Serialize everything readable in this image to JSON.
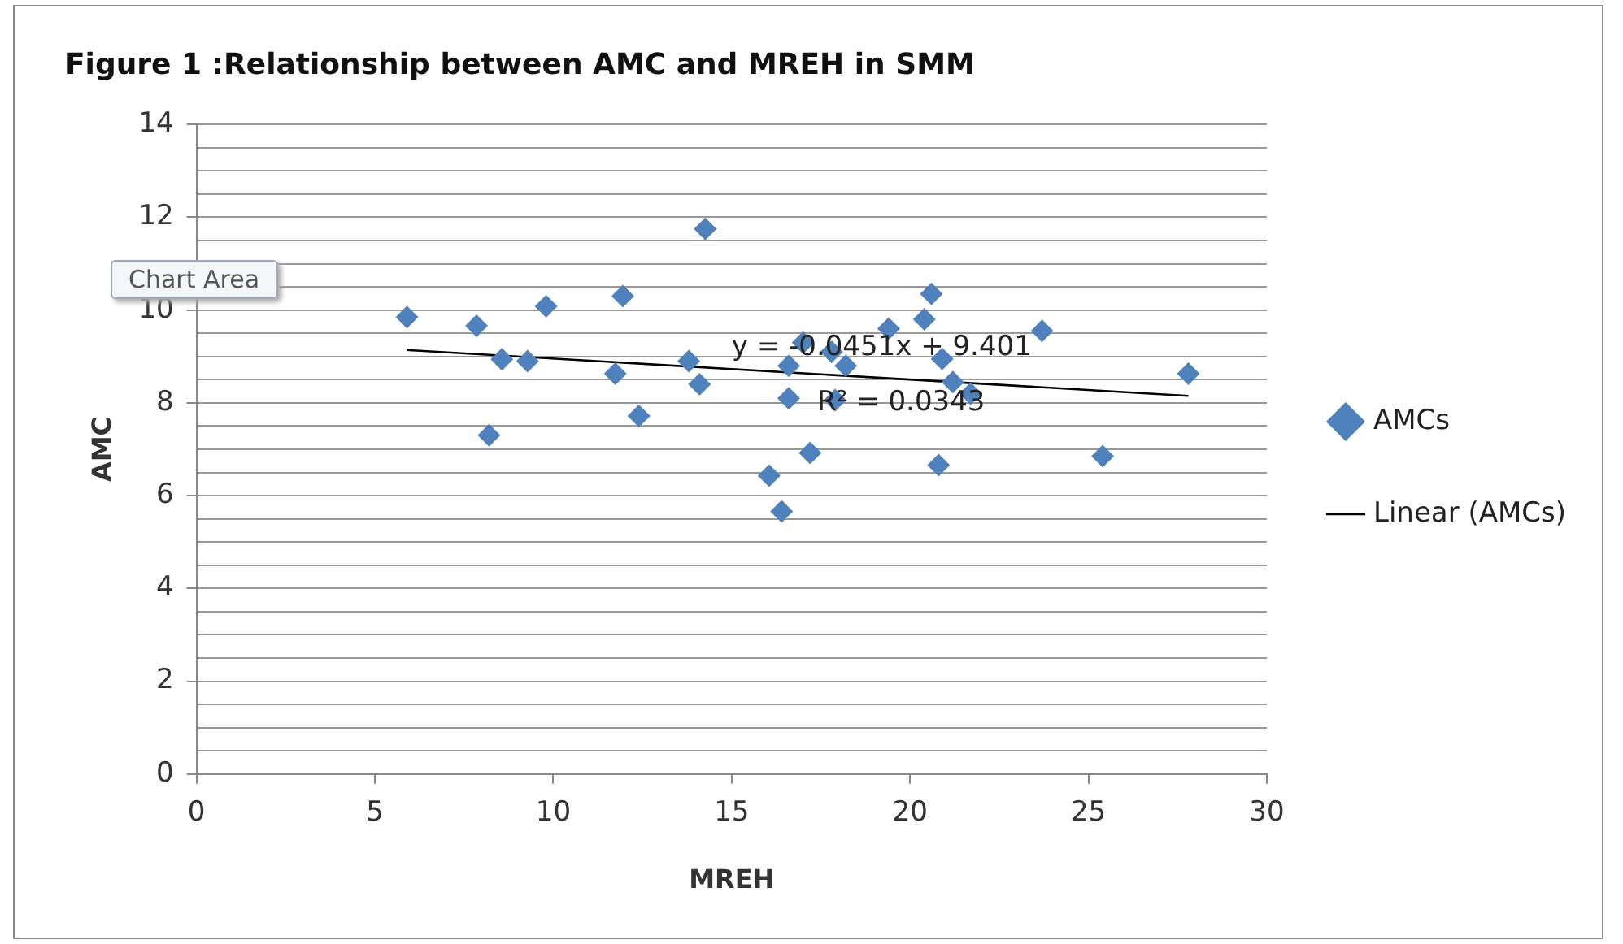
{
  "chart_data": {
    "type": "scatter",
    "title": "Figure 1 :Relationship between AMC and MREH in SMM",
    "xlabel": "MREH",
    "ylabel": "AMC",
    "series": [
      {
        "name": "AMCs",
        "color": "#4f81bd",
        "marker": "diamond",
        "x": [
          5.9,
          7.85,
          8.2,
          8.56,
          9.28,
          9.8,
          11.74,
          11.95,
          12.4,
          14.26,
          13.8,
          14.1,
          20.6,
          20.4,
          19.4,
          23.7,
          17.0,
          17.8,
          16.6,
          18.2,
          20.9,
          27.8,
          16.6,
          17.9,
          21.2,
          21.7,
          17.2,
          16.05,
          16.4,
          20.8,
          25.4
        ],
        "values": [
          9.85,
          9.66,
          7.3,
          8.94,
          8.9,
          10.08,
          8.63,
          10.3,
          7.72,
          11.75,
          8.9,
          8.4,
          10.35,
          9.8,
          9.6,
          9.55,
          9.3,
          9.1,
          8.8,
          8.8,
          8.95,
          8.63,
          8.1,
          8.06,
          8.45,
          8.2,
          6.92,
          6.43,
          5.66,
          6.66,
          6.85
        ]
      },
      {
        "name": "Linear (AMCs)",
        "type": "line",
        "color": "#000000",
        "marker": "none",
        "line_style": "solid",
        "x": [
          5.9,
          27.8
        ],
        "values": [
          9.14,
          8.15
        ]
      }
    ],
    "xlim": [
      0,
      30
    ],
    "xticks": [
      0,
      5,
      10,
      15,
      20,
      25,
      30
    ],
    "ylim": [
      0,
      14
    ],
    "yticks": [
      0,
      {
        "value": 0.5,
        "label": null
      },
      {
        "value": 1,
        "label": null
      },
      {
        "value": 1.5,
        "label": null
      },
      2,
      {
        "value": 2.5,
        "label": null
      },
      {
        "value": 3,
        "label": null
      },
      {
        "value": 3.5,
        "label": null
      },
      4,
      {
        "value": 4.5,
        "label": null
      },
      {
        "value": 5,
        "label": null
      },
      {
        "value": 5.5,
        "label": null
      },
      6,
      {
        "value": 6.5,
        "label": null
      },
      {
        "value": 7,
        "label": null
      },
      {
        "value": 7.5,
        "label": null
      },
      8,
      {
        "value": 8.5,
        "label": null
      },
      {
        "value": 9,
        "label": null
      },
      {
        "value": 9.5,
        "label": null
      },
      10,
      {
        "value": 10.5,
        "label": null
      },
      {
        "value": 11,
        "label": null
      },
      {
        "value": 11.5,
        "label": null
      },
      12,
      {
        "value": 12.5,
        "label": null
      },
      {
        "value": 13,
        "label": null
      },
      {
        "value": 13.5,
        "label": null
      },
      14
    ],
    "grid": "y",
    "legend": "right",
    "annotations": [
      "y = -0.0451x + 9.401",
      "R² = 0.0343",
      "Chart Area"
    ]
  }
}
